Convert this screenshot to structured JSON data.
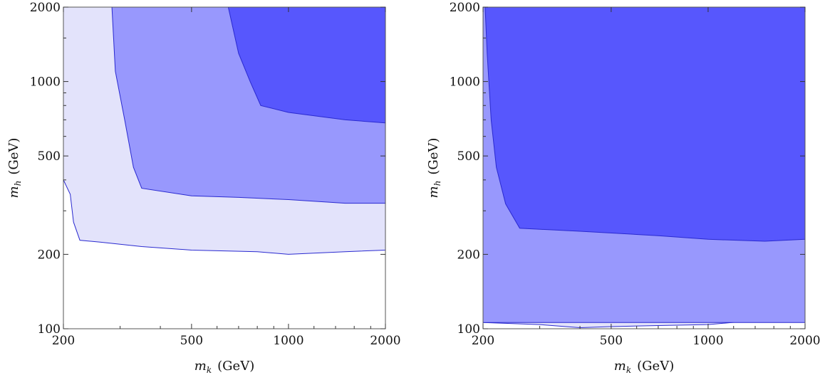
{
  "chart_data": [
    {
      "type": "contour",
      "xlabel": {
        "var": "m",
        "sub": "k",
        "unit": "(GeV)"
      },
      "ylabel": {
        "var": "m",
        "sub": "h",
        "unit": "(GeV)"
      },
      "xscale": "log",
      "yscale": "log",
      "xlim": [
        200,
        2000
      ],
      "ylim": [
        100,
        2000
      ],
      "xticks": [
        200,
        500,
        1000,
        2000
      ],
      "yticks": [
        100,
        200,
        500,
        1000,
        2000
      ],
      "xtick_labels": [
        "200",
        "500",
        "1000",
        "2000"
      ],
      "ytick_labels": [
        "100",
        "200",
        "500",
        "1000",
        "2000"
      ],
      "grid": false,
      "regions": [
        {
          "level": "light",
          "color": "#e3e3fb",
          "boundary": [
            [
              200,
              400
            ],
            [
              210,
              350
            ],
            [
              215,
              270
            ],
            [
              225,
              228
            ],
            [
              260,
              224
            ],
            [
              350,
              215
            ],
            [
              500,
              208
            ],
            [
              800,
              205
            ],
            [
              1000,
              200
            ],
            [
              1500,
              205
            ],
            [
              2000,
              208
            ]
          ]
        },
        {
          "level": "medium",
          "color": "#9898fd",
          "boundary": [
            [
              283,
              2000
            ],
            [
              290,
              1100
            ],
            [
              310,
              700
            ],
            [
              330,
              450
            ],
            [
              350,
              370
            ],
            [
              500,
              345
            ],
            [
              700,
              340
            ],
            [
              1000,
              333
            ],
            [
              1500,
              322
            ],
            [
              2000,
              322
            ]
          ]
        },
        {
          "level": "dark",
          "color": "#5757fd",
          "boundary": [
            [
              650,
              2000
            ],
            [
              700,
              1300
            ],
            [
              760,
              1000
            ],
            [
              820,
              800
            ],
            [
              1000,
              750
            ],
            [
              1500,
              700
            ],
            [
              2000,
              680
            ]
          ]
        }
      ]
    },
    {
      "type": "contour",
      "xlabel": {
        "var": "m",
        "sub": "k",
        "unit": "(GeV)"
      },
      "ylabel": {
        "var": "m",
        "sub": "h",
        "unit": "(GeV)"
      },
      "xscale": "log",
      "yscale": "log",
      "xlim": [
        200,
        2000
      ],
      "ylim": [
        100,
        2000
      ],
      "xticks": [
        200,
        500,
        1000,
        2000
      ],
      "yticks": [
        100,
        200,
        500,
        1000,
        2000
      ],
      "xtick_labels": [
        "200",
        "500",
        "1000",
        "2000"
      ],
      "ytick_labels": [
        "100",
        "200",
        "500",
        "1000",
        "2000"
      ],
      "grid": false,
      "regions": [
        {
          "level": "light",
          "color": "#e3e3fb",
          "boundary": [
            [
              200,
              106
            ],
            [
              300,
              104
            ],
            [
              400,
              101
            ],
            [
              500,
              102
            ],
            [
              700,
              103
            ],
            [
              1000,
              104
            ],
            [
              1400,
              108
            ],
            [
              1700,
              111
            ],
            [
              2000,
              107
            ]
          ]
        },
        {
          "level": "medium",
          "color": "#9898fd",
          "boundary": [
            [
              200,
              2000
            ],
            [
              200,
              106
            ]
          ]
        },
        {
          "level": "dark",
          "color": "#5757fd",
          "boundary": [
            [
              203,
              2000
            ],
            [
              206,
              1300
            ],
            [
              212,
              700
            ],
            [
              220,
              450
            ],
            [
              235,
              320
            ],
            [
              260,
              255
            ],
            [
              400,
              248
            ],
            [
              700,
              238
            ],
            [
              1000,
              230
            ],
            [
              1500,
              226
            ],
            [
              2000,
              230
            ]
          ]
        }
      ]
    }
  ]
}
